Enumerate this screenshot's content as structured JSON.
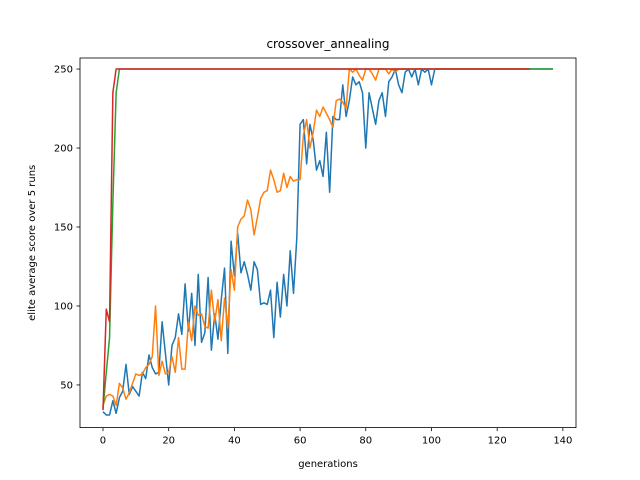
{
  "chart_data": {
    "type": "line",
    "title": "crossover_annealing",
    "xlabel": "generations",
    "ylabel": "elite average score over 5 runs",
    "xlim": [
      -7,
      144
    ],
    "ylim": [
      23,
      257
    ],
    "xticks": [
      0,
      20,
      40,
      60,
      80,
      100,
      120,
      140
    ],
    "yticks": [
      50,
      100,
      150,
      200,
      250
    ],
    "grid": false,
    "legend": "none",
    "series": [
      {
        "color": "#1f77b4",
        "x": [
          0,
          1,
          2,
          3,
          4,
          5,
          6,
          7,
          8,
          9,
          10,
          11,
          12,
          13,
          14,
          15,
          16,
          17,
          18,
          19,
          20,
          21,
          22,
          23,
          24,
          25,
          26,
          27,
          28,
          29,
          30,
          31,
          32,
          33,
          34,
          35,
          36,
          37,
          38,
          39,
          40,
          41,
          42,
          43,
          44,
          45,
          46,
          47,
          48,
          49,
          50,
          51,
          52,
          53,
          54,
          55,
          56,
          57,
          58,
          59,
          60,
          61,
          62,
          63,
          64,
          65,
          66,
          67,
          68,
          69,
          70,
          71,
          72,
          73,
          74,
          75,
          76,
          77,
          78,
          79,
          80,
          81,
          82,
          83,
          84,
          85,
          86,
          87,
          88,
          89,
          90,
          91,
          92,
          93,
          94,
          95,
          96,
          97,
          98,
          99,
          100,
          101,
          102,
          103,
          104,
          105,
          106,
          107,
          108,
          109,
          110,
          115,
          120,
          125,
          130,
          137
        ],
        "y": [
          33,
          31,
          31,
          40,
          32,
          42,
          46,
          63,
          44,
          49,
          46,
          43,
          58,
          54,
          69,
          61,
          57,
          58,
          90,
          70,
          50,
          75,
          80,
          95,
          82,
          114,
          84,
          108,
          75,
          120,
          77,
          83,
          118,
          72,
          95,
          79,
          104,
          124,
          70,
          141,
          119,
          146,
          121,
          128,
          120,
          110,
          128,
          123,
          101,
          102,
          101,
          110,
          80,
          115,
          93,
          120,
          100,
          135,
          108,
          143,
          215,
          218,
          190,
          215,
          205,
          186,
          192,
          182,
          210,
          172,
          220,
          218,
          218,
          240,
          220,
          230,
          245,
          240,
          242,
          235,
          200,
          235,
          225,
          215,
          230,
          235,
          220,
          242,
          245,
          250,
          240,
          235,
          248,
          250,
          245,
          250,
          240,
          250,
          248,
          250,
          240,
          250,
          250,
          250,
          250,
          250,
          250,
          250,
          250,
          250,
          250,
          250,
          250,
          250,
          250,
          250
        ]
      },
      {
        "color": "#ff7f0e",
        "x": [
          0,
          1,
          2,
          3,
          4,
          5,
          6,
          7,
          8,
          9,
          10,
          11,
          12,
          13,
          14,
          15,
          16,
          17,
          18,
          19,
          20,
          21,
          22,
          23,
          24,
          25,
          26,
          27,
          28,
          29,
          30,
          31,
          32,
          33,
          34,
          35,
          36,
          37,
          38,
          39,
          40,
          41,
          42,
          43,
          44,
          45,
          46,
          47,
          48,
          49,
          50,
          51,
          52,
          53,
          54,
          55,
          56,
          57,
          58,
          59,
          60,
          61,
          62,
          63,
          64,
          65,
          66,
          67,
          68,
          69,
          70,
          71,
          72,
          73,
          74,
          75,
          76,
          77,
          78,
          79,
          80,
          81,
          82,
          83,
          84,
          85,
          86,
          87,
          88,
          89,
          90,
          91,
          92,
          93,
          94,
          95,
          100,
          105,
          110,
          115,
          120,
          125,
          130
        ],
        "y": [
          37,
          43,
          44,
          43,
          37,
          51,
          48,
          41,
          45,
          51,
          57,
          56,
          57,
          61,
          63,
          68,
          100,
          56,
          65,
          57,
          58,
          68,
          58,
          80,
          60,
          60,
          90,
          78,
          100,
          94,
          95,
          87,
          86,
          110,
          90,
          104,
          78,
          105,
          86,
          123,
          110,
          150,
          155,
          157,
          167,
          161,
          145,
          156,
          168,
          172,
          173,
          186,
          180,
          172,
          173,
          184,
          175,
          182,
          179,
          180,
          180,
          208,
          218,
          200,
          210,
          224,
          220,
          226,
          222,
          218,
          213,
          230,
          231,
          229,
          225,
          250,
          248,
          250,
          246,
          243,
          250,
          250,
          247,
          243,
          250,
          250,
          250,
          247,
          250,
          248,
          250,
          250,
          250,
          250,
          250,
          250,
          250,
          250,
          250,
          250,
          250,
          250,
          250
        ]
      },
      {
        "color": "#2ca02c",
        "x": [
          0,
          1,
          2,
          3,
          4,
          5,
          10,
          20,
          40,
          60,
          80,
          100,
          120,
          137
        ],
        "y": [
          35,
          58,
          80,
          165,
          235,
          250,
          250,
          250,
          250,
          250,
          250,
          250,
          250,
          250
        ]
      },
      {
        "color": "#d62728",
        "x": [
          0,
          1,
          2,
          3,
          4,
          5,
          10,
          20,
          40,
          60,
          80,
          100,
          120,
          130
        ],
        "y": [
          34,
          98,
          90,
          235,
          250,
          250,
          250,
          250,
          250,
          250,
          250,
          250,
          250,
          250
        ]
      }
    ]
  }
}
